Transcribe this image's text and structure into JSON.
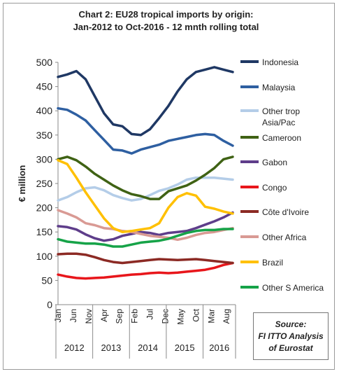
{
  "chart_data": {
    "type": "line",
    "title": "Chart 2: EU28 tropical imports by origin:",
    "subtitle": "Jan-2012 to Oct-2016 - 12 mnth rolling total",
    "ylabel": "€ million",
    "xlabel": "",
    "ylim": [
      0,
      500
    ],
    "yticks": [
      "0",
      "50",
      "100",
      "150",
      "200",
      "250",
      "300",
      "350",
      "400",
      "450",
      "500"
    ],
    "grid": false,
    "legend_position": "right",
    "month_ticks": [
      {
        "label": "Jan",
        "month": 0
      },
      {
        "label": "Jun",
        "month": 5
      },
      {
        "label": "Nov",
        "month": 10
      },
      {
        "label": "Apr",
        "month": 15
      },
      {
        "label": "Sep",
        "month": 20
      },
      {
        "label": "Feb",
        "month": 25
      },
      {
        "label": "Jul",
        "month": 30
      },
      {
        "label": "Dec",
        "month": 35
      },
      {
        "label": "May",
        "month": 40
      },
      {
        "label": "Oct",
        "month": 45
      },
      {
        "label": "Mar",
        "month": 50
      },
      {
        "label": "Aug",
        "month": 55
      }
    ],
    "years": [
      "2012",
      "2013",
      "2014",
      "2015",
      "2016"
    ],
    "x_months": [
      0,
      3,
      6,
      9,
      12,
      15,
      18,
      21,
      24,
      27,
      30,
      33,
      36,
      39,
      42,
      45,
      48,
      51,
      54,
      57
    ],
    "series": [
      {
        "name": "Indonesia",
        "color": "#1f3864",
        "values": [
          470,
          475,
          482,
          465,
          430,
          395,
          372,
          368,
          352,
          350,
          362,
          385,
          410,
          440,
          465,
          480,
          485,
          490,
          485,
          480
        ]
      },
      {
        "name": "Malaysia",
        "color": "#2e5fa1",
        "values": [
          405,
          402,
          392,
          380,
          360,
          340,
          320,
          318,
          312,
          320,
          325,
          330,
          338,
          342,
          346,
          350,
          352,
          350,
          338,
          328
        ]
      },
      {
        "name": "Other trop Asia/Pac",
        "color": "#b4cde8",
        "values": [
          215,
          222,
          232,
          240,
          242,
          236,
          226,
          220,
          215,
          218,
          226,
          235,
          240,
          248,
          258,
          262,
          262,
          262,
          260,
          258
        ]
      },
      {
        "name": "Cameroon",
        "color": "#3f6214",
        "values": [
          300,
          305,
          298,
          285,
          270,
          258,
          246,
          236,
          228,
          224,
          218,
          218,
          234,
          240,
          246,
          256,
          268,
          282,
          300,
          305
        ]
      },
      {
        "name": "Gabon",
        "color": "#5e3d8a",
        "values": [
          162,
          160,
          155,
          145,
          137,
          132,
          135,
          142,
          146,
          150,
          148,
          144,
          148,
          150,
          152,
          158,
          165,
          172,
          180,
          190
        ]
      },
      {
        "name": "Congo",
        "color": "#e8161b",
        "values": [
          62,
          58,
          55,
          54,
          55,
          56,
          58,
          60,
          62,
          63,
          65,
          66,
          65,
          66,
          68,
          70,
          72,
          76,
          82,
          86
        ]
      },
      {
        "name": "Côte d'Ivoire",
        "color": "#8c2a24",
        "values": [
          104,
          105,
          105,
          103,
          98,
          92,
          88,
          86,
          88,
          90,
          92,
          94,
          93,
          92,
          93,
          94,
          92,
          90,
          88,
          86
        ]
      },
      {
        "name": "Other Africa",
        "color": "#d99a94",
        "values": [
          195,
          188,
          180,
          168,
          164,
          158,
          156,
          152,
          150,
          146,
          142,
          140,
          138,
          134,
          138,
          144,
          148,
          150,
          154,
          158
        ]
      },
      {
        "name": "Brazil",
        "color": "#ffc000",
        "values": [
          298,
          290,
          262,
          232,
          205,
          178,
          158,
          150,
          152,
          155,
          158,
          168,
          200,
          222,
          230,
          225,
          202,
          198,
          192,
          188
        ]
      },
      {
        "name": "Other S America",
        "color": "#16a348",
        "values": [
          135,
          130,
          128,
          126,
          126,
          124,
          120,
          120,
          124,
          128,
          130,
          132,
          136,
          142,
          148,
          152,
          154,
          154,
          156,
          156
        ]
      }
    ]
  },
  "source_box": {
    "line1": "Source:",
    "line2": "FI ITTO Analysis",
    "line3": "of Eurostat"
  }
}
